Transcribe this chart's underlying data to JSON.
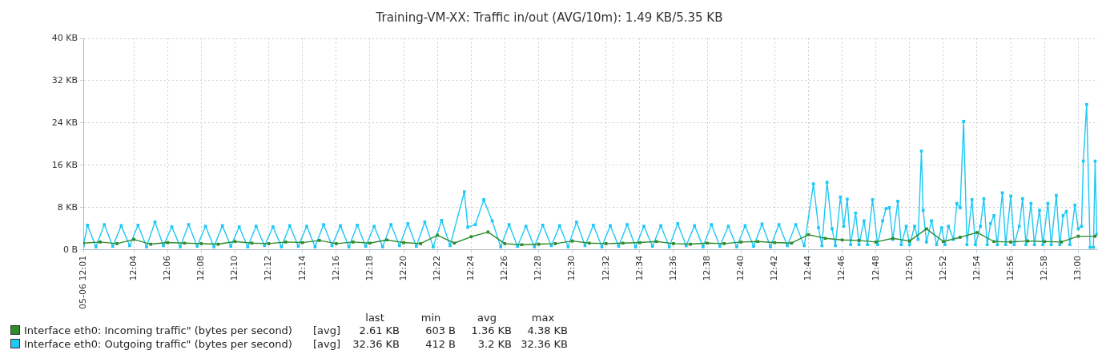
{
  "chart_data": {
    "type": "line",
    "title": "Training-VM-XX: Traffic in/out (AVG/10m): 1.49 KB/5.35 KB",
    "xlim": [
      12.0167,
      13.0192
    ],
    "xticks": [
      {
        "value": 12.0167,
        "label": "05-06 12:01"
      },
      {
        "value": 12.0667,
        "label": "12:04"
      },
      {
        "value": 12.1,
        "label": "12:06"
      },
      {
        "value": 12.1333,
        "label": "12:08"
      },
      {
        "value": 12.1667,
        "label": "12:10"
      },
      {
        "value": 12.2,
        "label": "12:12"
      },
      {
        "value": 12.2333,
        "label": "12:14"
      },
      {
        "value": 12.2667,
        "label": "12:16"
      },
      {
        "value": 12.3,
        "label": "12:18"
      },
      {
        "value": 12.3333,
        "label": "12:20"
      },
      {
        "value": 12.3667,
        "label": "12:22"
      },
      {
        "value": 12.4,
        "label": "12:24"
      },
      {
        "value": 12.4333,
        "label": "12:26"
      },
      {
        "value": 12.4667,
        "label": "12:28"
      },
      {
        "value": 12.5,
        "label": "12:30"
      },
      {
        "value": 12.5333,
        "label": "12:32"
      },
      {
        "value": 12.5667,
        "label": "12:34"
      },
      {
        "value": 12.6,
        "label": "12:36"
      },
      {
        "value": 12.6333,
        "label": "12:38"
      },
      {
        "value": 12.6667,
        "label": "12:40"
      },
      {
        "value": 12.7,
        "label": "12:42"
      },
      {
        "value": 12.7333,
        "label": "12:44"
      },
      {
        "value": 12.7667,
        "label": "12:46"
      },
      {
        "value": 12.8,
        "label": "12:48"
      },
      {
        "value": 12.8333,
        "label": "12:50"
      },
      {
        "value": 12.8667,
        "label": "12:52"
      },
      {
        "value": 12.9,
        "label": "12:54"
      },
      {
        "value": 12.9333,
        "label": "12:56"
      },
      {
        "value": 12.9667,
        "label": "12:58"
      },
      {
        "value": 13.0,
        "label": "13:00"
      }
    ],
    "ylim": [
      0,
      40
    ],
    "yticks": [
      {
        "value": 0,
        "label": "0 B"
      },
      {
        "value": 8,
        "label": "8 KB"
      },
      {
        "value": 16,
        "label": "16 KB"
      },
      {
        "value": 24,
        "label": "24 KB"
      },
      {
        "value": 32,
        "label": "32 KB"
      },
      {
        "value": 40,
        "label": "40 KB"
      }
    ],
    "grid": true,
    "legend": "bottom",
    "marker": "square",
    "line_style": "solid",
    "annotations": [
      "last",
      "min",
      "avg",
      "max",
      "[avg]",
      "2.61 KB",
      "603 B",
      "1.36 KB",
      "4.38 KB",
      "[avg]",
      "32.36 KB",
      "412 B",
      "3.2 KB",
      "32.36 KB"
    ],
    "series": [
      {
        "name": "Interface eth0: Incoming traffic\" (bytes per second)",
        "color": "#2e8b2e",
        "x": [
          12.0167,
          12.0333,
          12.05,
          12.0667,
          12.0833,
          12.1,
          12.1167,
          12.1333,
          12.15,
          12.1667,
          12.1833,
          12.2,
          12.2167,
          12.2333,
          12.25,
          12.2667,
          12.2833,
          12.3,
          12.3167,
          12.3333,
          12.35,
          12.3667,
          12.3833,
          12.4,
          12.4167,
          12.4333,
          12.45,
          12.4667,
          12.4833,
          12.5,
          12.5167,
          12.5333,
          12.55,
          12.5667,
          12.5833,
          12.6,
          12.6167,
          12.6333,
          12.65,
          12.6667,
          12.6833,
          12.7,
          12.7167,
          12.7333,
          12.75,
          12.7667,
          12.7833,
          12.8,
          12.8167,
          12.8333,
          12.85,
          12.8667,
          12.8833,
          12.9,
          12.9167,
          12.9333,
          12.95,
          12.9667,
          12.9833,
          13.0,
          13.0167
        ],
        "values": [
          1.3,
          1.5,
          1.2,
          2.0,
          1.1,
          1.4,
          1.3,
          1.2,
          1.1,
          1.6,
          1.3,
          1.2,
          1.5,
          1.4,
          1.8,
          1.2,
          1.5,
          1.3,
          1.9,
          1.4,
          1.2,
          2.8,
          1.3,
          2.5,
          3.4,
          1.2,
          1.0,
          1.1,
          1.2,
          1.7,
          1.3,
          1.2,
          1.3,
          1.4,
          1.6,
          1.2,
          1.1,
          1.3,
          1.2,
          1.5,
          1.6,
          1.4,
          1.3,
          2.9,
          2.2,
          1.9,
          1.8,
          1.5,
          2.2,
          1.7,
          4.0,
          1.6,
          2.4,
          3.3,
          1.6,
          1.5,
          1.7,
          1.6,
          1.5,
          2.6,
          2.6
        ]
      },
      {
        "name": "Interface eth0: Outgoing traffic\" (bytes per second)",
        "color": "#1ec8f5",
        "x": [
          12.0167,
          12.0208,
          12.0292,
          12.0375,
          12.0458,
          12.0542,
          12.0625,
          12.0708,
          12.0792,
          12.0875,
          12.0958,
          12.1042,
          12.1125,
          12.1208,
          12.1292,
          12.1375,
          12.1458,
          12.1542,
          12.1625,
          12.1708,
          12.1792,
          12.1875,
          12.1958,
          12.2042,
          12.2125,
          12.2208,
          12.2292,
          12.2375,
          12.2458,
          12.2542,
          12.2625,
          12.2708,
          12.2792,
          12.2875,
          12.2958,
          12.3042,
          12.3125,
          12.3208,
          12.3292,
          12.3375,
          12.3458,
          12.3542,
          12.3625,
          12.3708,
          12.3792,
          12.3933,
          12.3967,
          12.4042,
          12.4125,
          12.4208,
          12.4292,
          12.4375,
          12.4458,
          12.4542,
          12.4625,
          12.4708,
          12.4792,
          12.4875,
          12.4958,
          12.5042,
          12.5125,
          12.5208,
          12.5292,
          12.5375,
          12.5458,
          12.5542,
          12.5625,
          12.5708,
          12.5792,
          12.5875,
          12.5958,
          12.6042,
          12.6125,
          12.6208,
          12.6292,
          12.6375,
          12.6458,
          12.6542,
          12.6625,
          12.6708,
          12.6792,
          12.6875,
          12.6958,
          12.7042,
          12.7125,
          12.7208,
          12.7292,
          12.7383,
          12.7433,
          12.7467,
          12.7517,
          12.7567,
          12.76,
          12.765,
          12.7683,
          12.7717,
          12.775,
          12.78,
          12.7833,
          12.7883,
          12.7917,
          12.7967,
          12.8017,
          12.8067,
          12.81,
          12.8133,
          12.8167,
          12.8217,
          12.825,
          12.83,
          12.8333,
          12.8383,
          12.8417,
          12.845,
          12.8467,
          12.85,
          12.855,
          12.86,
          12.865,
          12.8683,
          12.8717,
          12.8767,
          12.88,
          12.8833,
          12.8867,
          12.89,
          12.895,
          12.8983,
          12.9033,
          12.9067,
          12.91,
          12.9133,
          12.9167,
          12.92,
          12.925,
          12.9283,
          12.9333,
          12.9367,
          12.9417,
          12.945,
          12.9483,
          12.9533,
          12.9567,
          12.9617,
          12.965,
          12.97,
          12.9733,
          12.9783,
          12.9817,
          12.985,
          12.9883,
          12.9917,
          12.9967,
          13.0,
          13.0033,
          13.005,
          13.0083,
          13.0117,
          13.015,
          13.0167,
          13.0183
        ],
        "values": [
          0.8,
          4.7,
          0.6,
          4.8,
          0.7,
          4.6,
          0.8,
          4.7,
          0.6,
          5.3,
          0.8,
          4.4,
          0.6,
          4.8,
          0.7,
          4.5,
          0.6,
          4.6,
          0.7,
          4.4,
          0.6,
          4.5,
          0.8,
          4.4,
          0.6,
          4.6,
          0.7,
          4.5,
          0.6,
          4.8,
          0.8,
          4.6,
          0.6,
          4.7,
          0.7,
          4.5,
          0.6,
          4.8,
          0.8,
          5.0,
          0.7,
          5.3,
          0.6,
          5.6,
          0.8,
          11.0,
          4.3,
          4.8,
          9.5,
          5.5,
          0.6,
          4.8,
          0.7,
          4.5,
          0.6,
          4.7,
          0.8,
          4.6,
          0.6,
          5.3,
          0.8,
          4.7,
          0.6,
          4.6,
          0.7,
          4.8,
          0.6,
          4.5,
          0.7,
          4.6,
          0.6,
          5.0,
          0.8,
          4.6,
          0.6,
          4.8,
          0.7,
          4.5,
          0.6,
          4.6,
          0.7,
          4.9,
          0.6,
          4.8,
          0.8,
          4.8,
          0.8,
          12.5,
          4.2,
          0.8,
          12.8,
          4.0,
          0.8,
          10.0,
          4.5,
          9.6,
          1.0,
          7.0,
          1.0,
          5.5,
          1.0,
          9.5,
          1.0,
          5.5,
          7.8,
          8.0,
          2.0,
          9.2,
          1.0,
          4.5,
          1.0,
          4.5,
          2.0,
          18.7,
          7.5,
          1.5,
          5.5,
          1.0,
          4.2,
          1.0,
          4.5,
          2.0,
          8.8,
          8.0,
          24.3,
          1.0,
          9.5,
          1.0,
          4.5,
          9.7,
          1.0,
          5.0,
          6.5,
          1.0,
          10.8,
          1.0,
          10.2,
          1.0,
          4.5,
          9.7,
          1.0,
          8.8,
          1.0,
          7.5,
          1.0,
          8.8,
          1.0,
          10.3,
          1.0,
          6.5,
          7.3,
          1.0,
          8.5,
          4.0,
          4.5,
          16.8,
          27.5,
          0.5,
          0.5,
          16.8,
          3.0
        ]
      }
    ]
  }
}
